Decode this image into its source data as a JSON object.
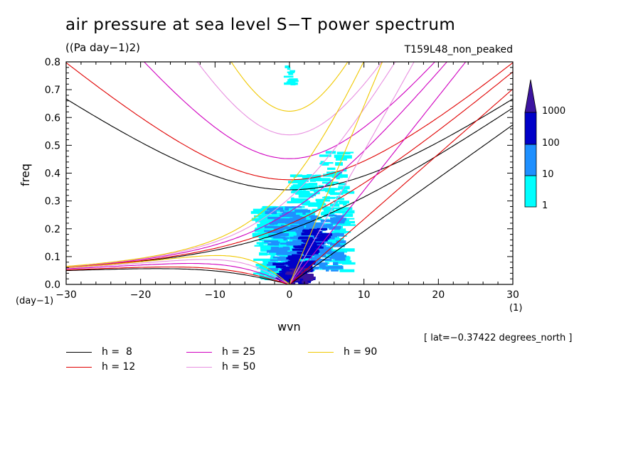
{
  "title": "air pressure at sea level S−T power spectrum",
  "units": "((Pa day−1)2)",
  "run_name": "T159L48_non_peaked",
  "lat_note": "[ lat=−0.37422 degrees_north ]",
  "chart_data": {
    "type": "heatmap",
    "xlabel": "wvn",
    "ylabel": "freq",
    "x_unit_left": "(day−1)",
    "x_unit_right": "(1)",
    "xlim": [
      -30,
      30
    ],
    "ylim": [
      0,
      0.8
    ],
    "x_ticks": [
      "−30",
      "−20",
      "−10",
      "0",
      "10",
      "20",
      "30"
    ],
    "x_tick_values": [
      -30,
      -20,
      -10,
      0,
      10,
      20,
      30
    ],
    "y_ticks": [
      "0.0",
      "0.1",
      "0.2",
      "0.3",
      "0.4",
      "0.5",
      "0.6",
      "0.7",
      "0.8"
    ],
    "y_tick_values": [
      0,
      0.1,
      0.2,
      0.3,
      0.4,
      0.5,
      0.6,
      0.7,
      0.8
    ],
    "colorbar": {
      "labels": [
        "1",
        "10",
        "100",
        "1000"
      ],
      "colors": [
        "#00ffff",
        "#1e90ff",
        "#0000c8",
        "#3c14a0"
      ]
    },
    "power_regions": [
      {
        "level": "1-10",
        "x": [
          -4,
          8
        ],
        "y": [
          0.0,
          0.4
        ]
      },
      {
        "level": "10-100",
        "x": [
          -2,
          7
        ],
        "y": [
          0.0,
          0.28
        ]
      },
      {
        "level": "100-1000",
        "x": [
          -1,
          5
        ],
        "y": [
          0.0,
          0.2
        ]
      },
      {
        "level": ">1000",
        "x": [
          0,
          3
        ],
        "y": [
          0.0,
          0.08
        ]
      }
    ],
    "dispersion_curves": [
      {
        "name": "h =  8",
        "h": 8,
        "color": "#000000"
      },
      {
        "name": "h = 12",
        "h": 12,
        "color": "#e00000"
      },
      {
        "name": "h = 25",
        "h": 25,
        "color": "#d000c0"
      },
      {
        "name": "h = 50",
        "h": 50,
        "color": "#e890e0"
      },
      {
        "name": "h = 90",
        "h": 90,
        "color": "#f0c800"
      }
    ]
  }
}
